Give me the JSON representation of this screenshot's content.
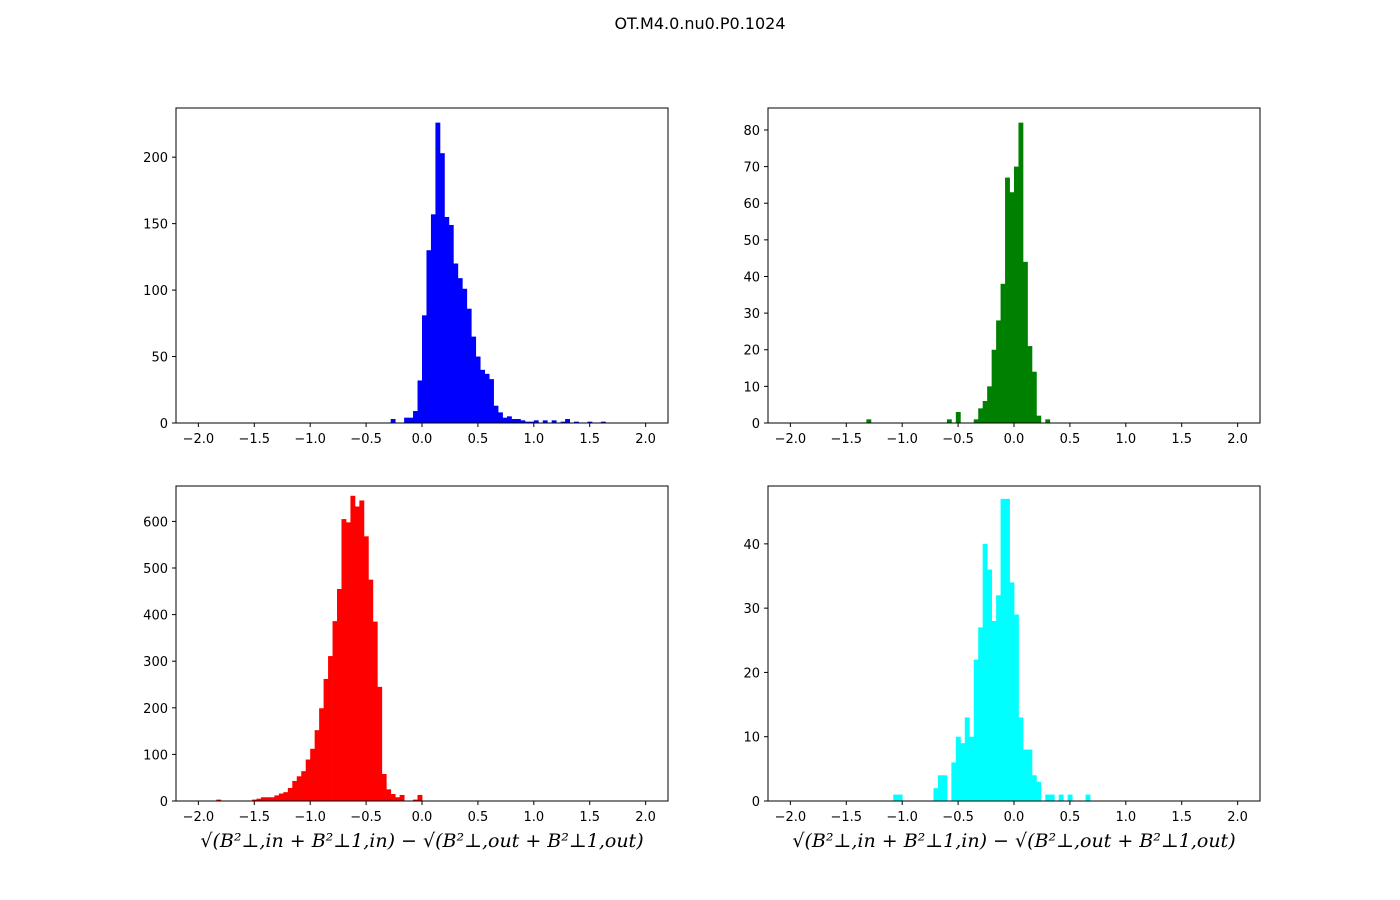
{
  "figure": {
    "title": "OT.M4.0.nu0.P0.1024",
    "xlabel_text": "√(B²⊥,in + B²⊥1,in) − √(B²⊥,out + B²⊥1,out)"
  },
  "chart_data": [
    {
      "type": "bar",
      "subplot": "top-left",
      "color": "#0000ff",
      "xlim": [
        -2.2,
        2.2
      ],
      "ylim": [
        0,
        237
      ],
      "xticks": [
        -2.0,
        -1.5,
        -1.0,
        -0.5,
        0.0,
        0.5,
        1.0,
        1.5,
        2.0
      ],
      "yticks": [
        0,
        50,
        100,
        150,
        200
      ],
      "bin_width": 0.04,
      "bins": [
        [
          -0.28,
          3
        ],
        [
          -0.16,
          4
        ],
        [
          -0.12,
          4
        ],
        [
          -0.08,
          9
        ],
        [
          -0.04,
          32
        ],
        [
          0.0,
          81
        ],
        [
          0.04,
          130
        ],
        [
          0.08,
          157
        ],
        [
          0.12,
          226
        ],
        [
          0.16,
          203
        ],
        [
          0.2,
          155
        ],
        [
          0.24,
          149
        ],
        [
          0.28,
          120
        ],
        [
          0.32,
          109
        ],
        [
          0.36,
          101
        ],
        [
          0.4,
          86
        ],
        [
          0.44,
          65
        ],
        [
          0.48,
          50
        ],
        [
          0.52,
          40
        ],
        [
          0.56,
          37
        ],
        [
          0.6,
          33
        ],
        [
          0.64,
          13
        ],
        [
          0.68,
          8
        ],
        [
          0.72,
          4
        ],
        [
          0.76,
          5
        ],
        [
          0.8,
          3
        ],
        [
          0.84,
          3
        ],
        [
          0.88,
          2
        ],
        [
          0.92,
          1
        ],
        [
          0.96,
          1
        ],
        [
          1.0,
          2
        ],
        [
          1.08,
          2
        ],
        [
          1.16,
          2
        ],
        [
          1.24,
          1
        ],
        [
          1.28,
          3
        ],
        [
          1.36,
          1
        ],
        [
          1.48,
          1
        ],
        [
          1.6,
          1
        ]
      ]
    },
    {
      "type": "bar",
      "subplot": "top-right",
      "color": "#008000",
      "xlim": [
        -2.2,
        2.2
      ],
      "ylim": [
        0,
        86
      ],
      "xticks": [
        -2.0,
        -1.5,
        -1.0,
        -0.5,
        0.0,
        0.5,
        1.0,
        1.5,
        2.0
      ],
      "yticks": [
        0,
        10,
        20,
        30,
        40,
        50,
        60,
        70,
        80
      ],
      "bin_width": 0.04,
      "bins": [
        [
          -1.32,
          1
        ],
        [
          -0.6,
          1
        ],
        [
          -0.52,
          3
        ],
        [
          -0.36,
          1
        ],
        [
          -0.32,
          4
        ],
        [
          -0.28,
          6
        ],
        [
          -0.24,
          10
        ],
        [
          -0.2,
          20
        ],
        [
          -0.16,
          28
        ],
        [
          -0.12,
          38
        ],
        [
          -0.08,
          67
        ],
        [
          -0.04,
          63
        ],
        [
          0.0,
          70
        ],
        [
          0.04,
          82
        ],
        [
          0.08,
          44
        ],
        [
          0.12,
          21
        ],
        [
          0.16,
          14
        ],
        [
          0.2,
          2
        ],
        [
          0.28,
          1
        ]
      ]
    },
    {
      "type": "bar",
      "subplot": "bottom-left",
      "color": "#ff0000",
      "xlim": [
        -2.2,
        2.2
      ],
      "ylim": [
        0,
        676
      ],
      "xticks": [
        -2.0,
        -1.5,
        -1.0,
        -0.5,
        0.0,
        0.5,
        1.0,
        1.5,
        2.0
      ],
      "yticks": [
        0,
        100,
        200,
        300,
        400,
        500,
        600
      ],
      "bin_width": 0.04,
      "bins": [
        [
          -1.84,
          3
        ],
        [
          -1.52,
          3
        ],
        [
          -1.48,
          5
        ],
        [
          -1.44,
          8
        ],
        [
          -1.4,
          8
        ],
        [
          -1.36,
          8
        ],
        [
          -1.32,
          12
        ],
        [
          -1.28,
          16
        ],
        [
          -1.24,
          19
        ],
        [
          -1.2,
          28
        ],
        [
          -1.16,
          43
        ],
        [
          -1.12,
          53
        ],
        [
          -1.08,
          64
        ],
        [
          -1.04,
          89
        ],
        [
          -1.0,
          112
        ],
        [
          -0.96,
          152
        ],
        [
          -0.92,
          199
        ],
        [
          -0.88,
          262
        ],
        [
          -0.84,
          311
        ],
        [
          -0.8,
          386
        ],
        [
          -0.76,
          455
        ],
        [
          -0.72,
          605
        ],
        [
          -0.68,
          598
        ],
        [
          -0.64,
          655
        ],
        [
          -0.6,
          632
        ],
        [
          -0.56,
          645
        ],
        [
          -0.52,
          568
        ],
        [
          -0.48,
          475
        ],
        [
          -0.44,
          385
        ],
        [
          -0.4,
          245
        ],
        [
          -0.36,
          58
        ],
        [
          -0.32,
          25
        ],
        [
          -0.28,
          15
        ],
        [
          -0.24,
          8
        ],
        [
          -0.2,
          13
        ],
        [
          -0.08,
          3
        ],
        [
          -0.04,
          13
        ]
      ]
    },
    {
      "type": "bar",
      "subplot": "bottom-right",
      "color": "#00ffff",
      "xlim": [
        -2.2,
        2.2
      ],
      "ylim": [
        0,
        49
      ],
      "xticks": [
        -2.0,
        -1.5,
        -1.0,
        -0.5,
        0.0,
        0.5,
        1.0,
        1.5,
        2.0
      ],
      "yticks": [
        0,
        10,
        20,
        30,
        40
      ],
      "bin_width": 0.04,
      "bins": [
        [
          -1.08,
          1
        ],
        [
          -1.04,
          1
        ],
        [
          -0.72,
          2
        ],
        [
          -0.68,
          4
        ],
        [
          -0.64,
          4
        ],
        [
          -0.56,
          6
        ],
        [
          -0.52,
          10
        ],
        [
          -0.48,
          9
        ],
        [
          -0.44,
          13
        ],
        [
          -0.4,
          10
        ],
        [
          -0.36,
          22
        ],
        [
          -0.32,
          27
        ],
        [
          -0.28,
          40
        ],
        [
          -0.24,
          36
        ],
        [
          -0.2,
          28
        ],
        [
          -0.16,
          32
        ],
        [
          -0.12,
          47
        ],
        [
          -0.08,
          47
        ],
        [
          -0.04,
          34
        ],
        [
          0.0,
          29
        ],
        [
          0.04,
          13
        ],
        [
          0.08,
          8
        ],
        [
          0.12,
          8
        ],
        [
          0.16,
          4
        ],
        [
          0.2,
          3
        ],
        [
          0.28,
          1
        ],
        [
          0.32,
          1
        ],
        [
          0.4,
          1
        ],
        [
          0.48,
          1
        ],
        [
          0.64,
          1
        ]
      ]
    }
  ]
}
